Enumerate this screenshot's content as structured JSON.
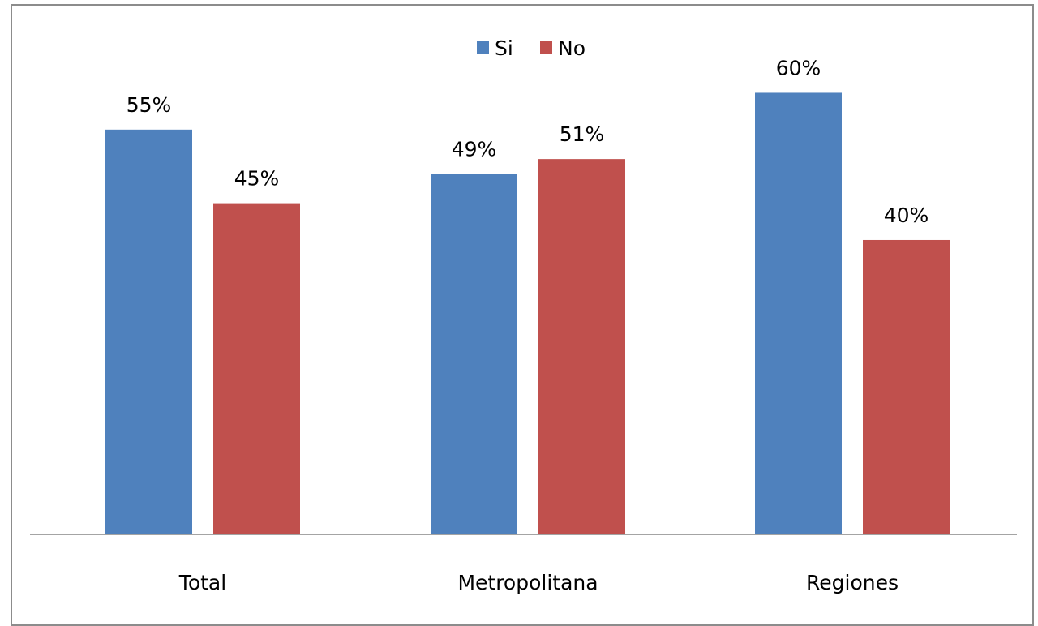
{
  "chart_data": {
    "type": "bar",
    "title": "",
    "xlabel": "",
    "ylabel": "",
    "ylim": [
      0,
      0.66
    ],
    "grid": false,
    "legend": "top-center",
    "value_format": "percent",
    "categories": [
      "Total",
      "Metropolitana",
      "Regiones"
    ],
    "series": [
      {
        "name": "Si",
        "color": "#4f81bd",
        "values": [
          0.55,
          0.49,
          0.6
        ]
      },
      {
        "name": "No",
        "color": "#c0504d",
        "values": [
          0.45,
          0.51,
          0.4
        ]
      }
    ]
  }
}
